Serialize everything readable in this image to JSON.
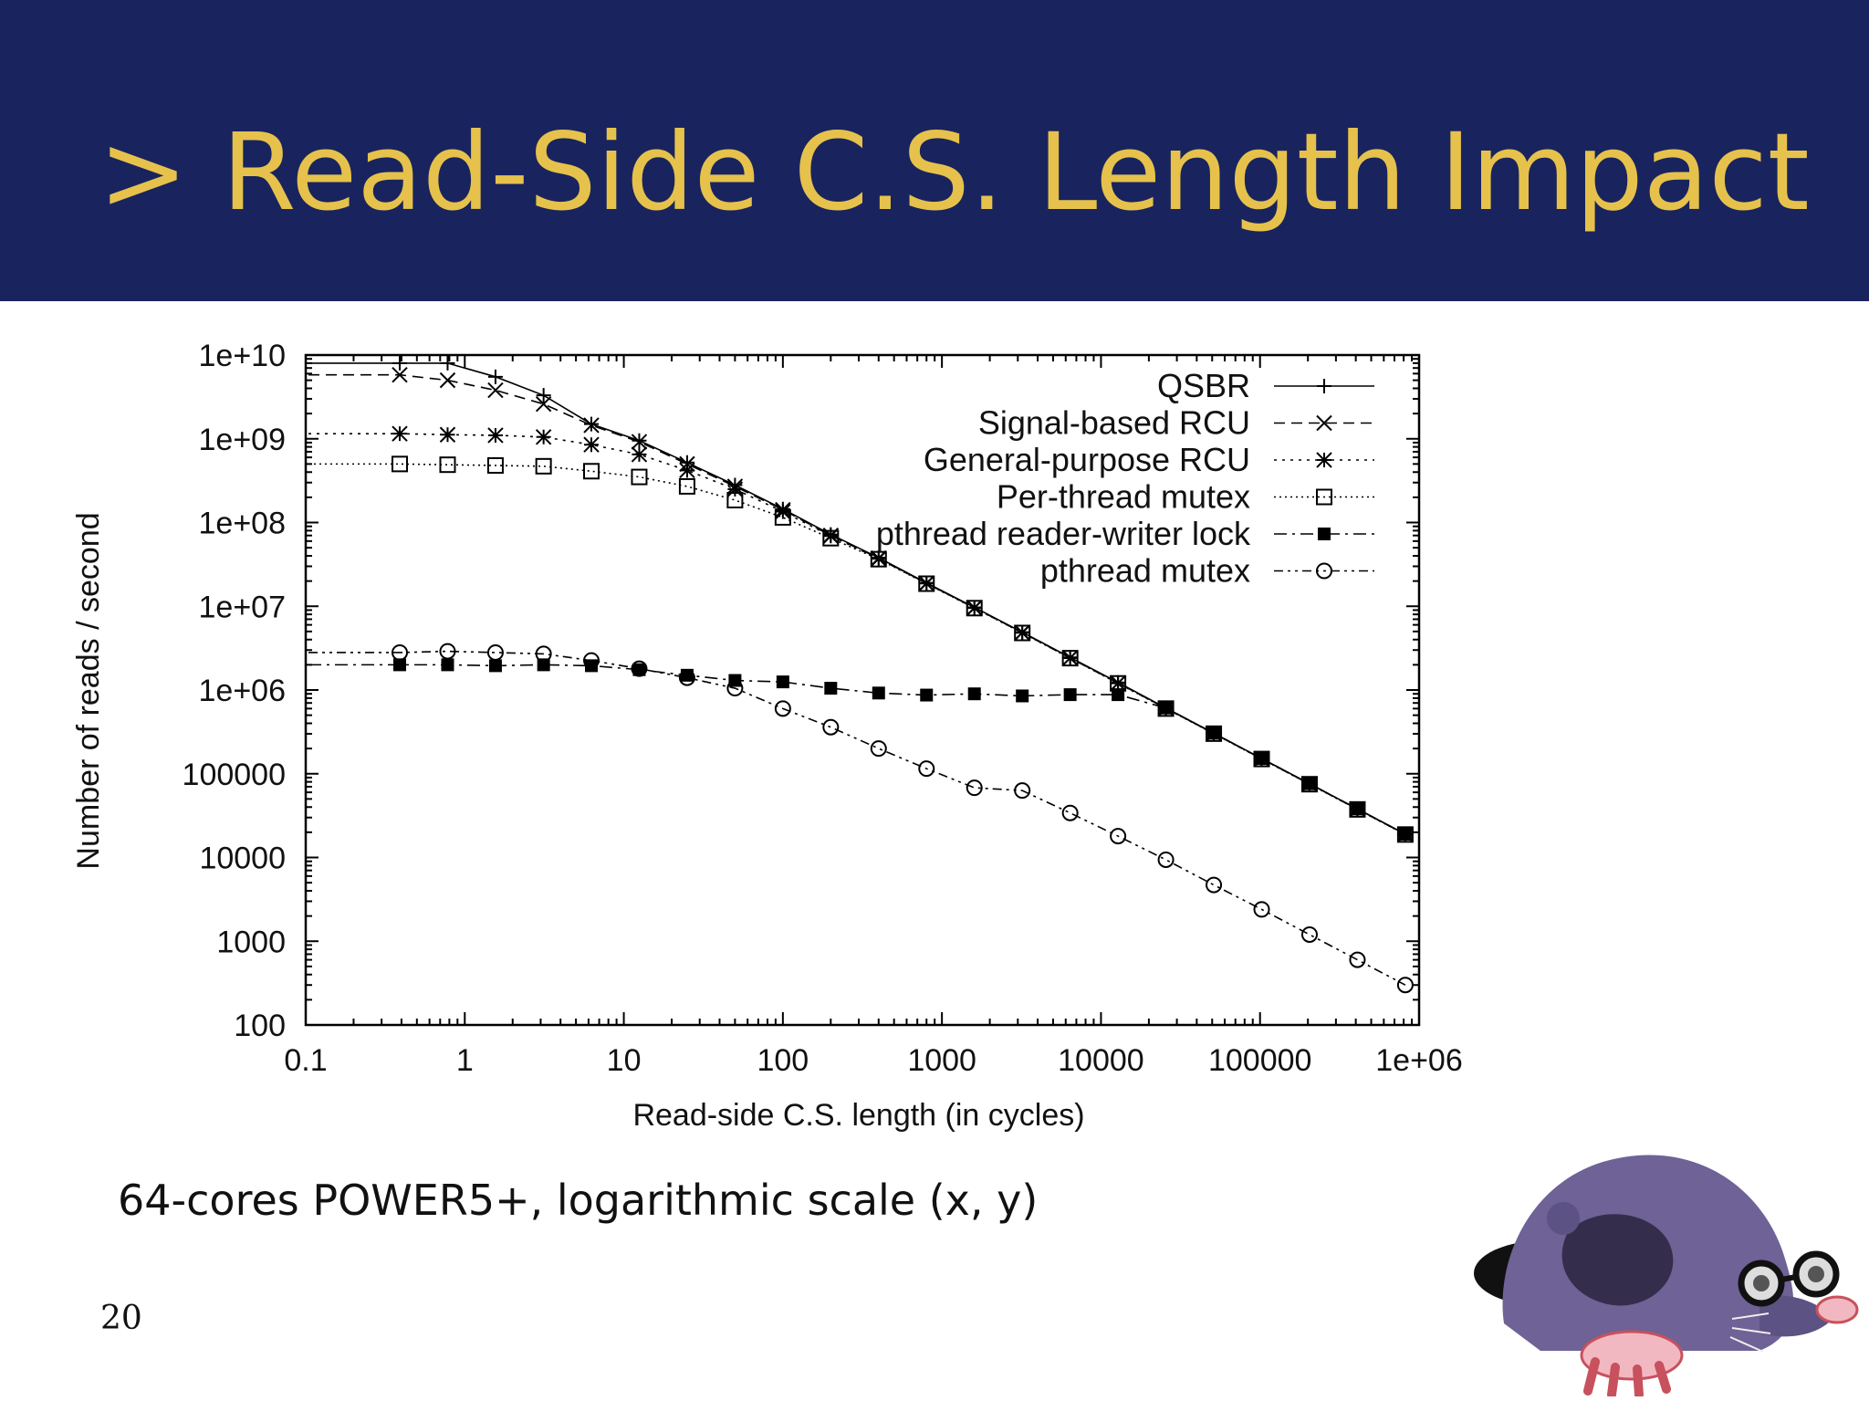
{
  "slide": {
    "title": "> Read-Side C.S. Length Impact",
    "caption": "64-cores POWER5+, logarithmic scale (x, y)",
    "page_number": "20",
    "colors": {
      "header_bg": "#19245e",
      "title_text": "#e6c24c",
      "mascot_body": "#6e6296"
    },
    "mascot_icon": "mole-with-glasses"
  },
  "chart_data": {
    "type": "line",
    "title": "",
    "xlabel": "Read-side C.S. length (in cycles)",
    "ylabel": "Number of reads / second",
    "xscale": "log",
    "yscale": "log",
    "xlim": [
      0.1,
      1000000
    ],
    "ylim": [
      100,
      10000000000
    ],
    "grid": false,
    "legend_position": "top-right",
    "x_tick_labels": [
      "0.1",
      "1",
      "10",
      "100",
      "1000",
      "10000",
      "100000",
      "1e+06"
    ],
    "y_tick_labels": [
      "100",
      "1000",
      "10000",
      "100000",
      "1e+06",
      "1e+07",
      "1e+08",
      "1e+09",
      "1e+10"
    ],
    "x": [
      0.39,
      0.78,
      1.56,
      3.13,
      6.25,
      12.5,
      25,
      50,
      100,
      200,
      400,
      800,
      1600,
      3200,
      6400,
      12800,
      25600,
      51200,
      102400,
      204800,
      409600,
      819200
    ],
    "series": [
      {
        "name": "QSBR",
        "marker": "plus",
        "dash": "solid",
        "values": [
          8000000000,
          8000000000,
          5500000000,
          3300000000,
          1500000000,
          950000000,
          520000000,
          280000000,
          145000000,
          72000000,
          38000000,
          19000000,
          9700000,
          4900000,
          2450000,
          1230000,
          610000,
          305000,
          152000,
          76000,
          38000,
          19000
        ]
      },
      {
        "name": "Signal-based RCU",
        "marker": "x",
        "dash": "dashed",
        "values": [
          5800000000,
          5000000000,
          3800000000,
          2600000000,
          1450000000,
          920000000,
          500000000,
          270000000,
          142000000,
          70000000,
          37500000,
          18800000,
          9600000,
          4850000,
          2420000,
          1210000,
          605000,
          303000,
          151000,
          75500,
          37800,
          18900
        ]
      },
      {
        "name": "General-purpose RCU",
        "marker": "asterisk",
        "dash": "dotted",
        "values": [
          1150000000,
          1120000000,
          1100000000,
          1050000000,
          850000000,
          650000000,
          420000000,
          250000000,
          135000000,
          69000000,
          37000000,
          18700000,
          9550000,
          4830000,
          2410000,
          1205000,
          603000,
          302000,
          150500,
          75300,
          37700,
          18850
        ]
      },
      {
        "name": "Per-thread mutex",
        "marker": "open-square",
        "dash": "fine-dotted",
        "values": [
          500000000,
          490000000,
          480000000,
          470000000,
          410000000,
          350000000,
          270000000,
          185000000,
          115000000,
          65000000,
          36500000,
          18600000,
          9500000,
          4800000,
          2400000,
          1200000,
          600000,
          301000,
          150000,
          75000,
          37500,
          18800
        ]
      },
      {
        "name": "pthread reader-writer lock",
        "marker": "filled-square",
        "dash": "dash-dot",
        "values": [
          2000000,
          2000000,
          1950000,
          2000000,
          1950000,
          1750000,
          1500000,
          1300000,
          1250000,
          1050000,
          920000,
          870000,
          900000,
          850000,
          880000,
          880000,
          610000,
          305000,
          152000,
          76000,
          38000,
          19000
        ]
      },
      {
        "name": "pthread mutex",
        "marker": "open-circle",
        "dash": "dash-dot-dot",
        "values": [
          2800000,
          2900000,
          2800000,
          2700000,
          2250000,
          1800000,
          1400000,
          1050000,
          600000,
          360000,
          200000,
          115000,
          68000,
          63000,
          34000,
          18000,
          9400,
          4700,
          2400,
          1200,
          600,
          300
        ]
      }
    ]
  }
}
